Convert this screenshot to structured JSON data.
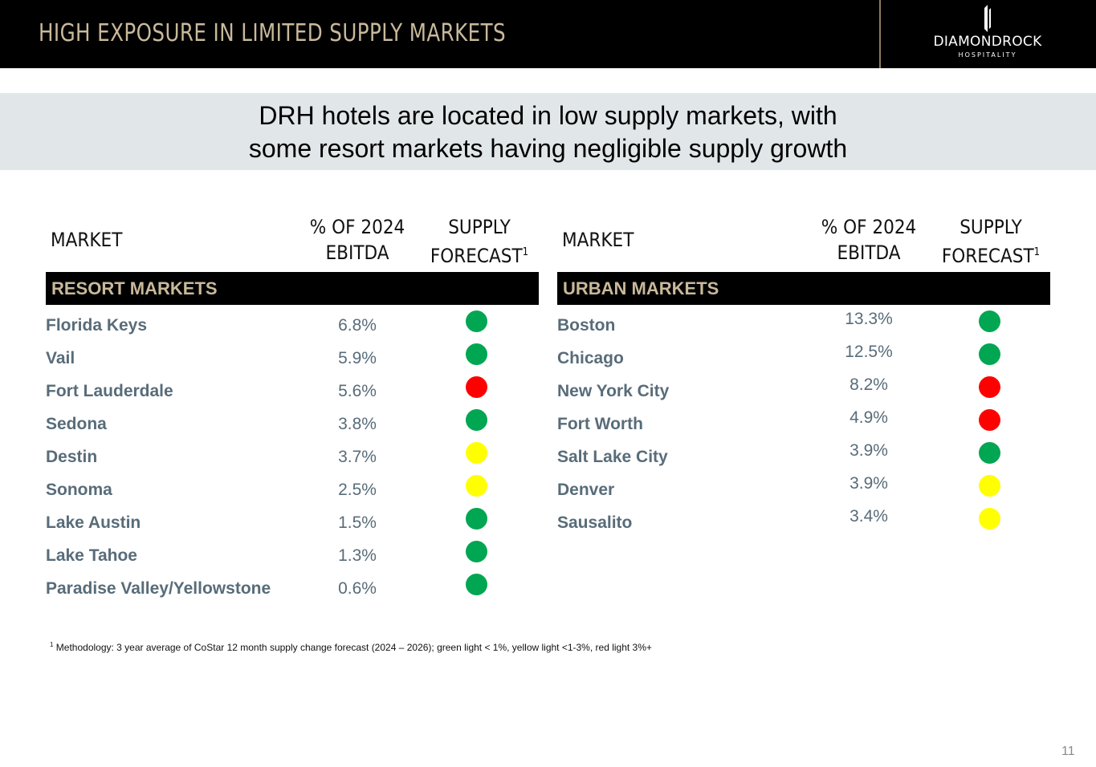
{
  "header": {
    "title": "HIGH EXPOSURE IN LIMITED SUPPLY MARKETS",
    "logo_name": "DIAMONDROCK",
    "logo_sub": "HOSPITALITY"
  },
  "banner": {
    "line1": "DRH hotels are located in low supply markets, with",
    "line2": "some resort markets having negligible supply growth"
  },
  "columns": {
    "market": "MARKET",
    "pct_line1": "% OF 2024",
    "pct_line2": "EBITDA",
    "supply_line1": "SUPPLY",
    "supply_line2": "FORECAST",
    "supply_sup": "1"
  },
  "colors": {
    "green": "#00a651",
    "yellow": "#ffff00",
    "red": "#ff0000"
  },
  "resort": {
    "title": "RESORT MARKETS",
    "rows": [
      {
        "market": "Florida Keys",
        "pct": "6.8%",
        "light": "green"
      },
      {
        "market": "Vail",
        "pct": "5.9%",
        "light": "green"
      },
      {
        "market": "Fort Lauderdale",
        "pct": "5.6%",
        "light": "red"
      },
      {
        "market": "Sedona",
        "pct": "3.8%",
        "light": "green"
      },
      {
        "market": "Destin",
        "pct": "3.7%",
        "light": "yellow"
      },
      {
        "market": "Sonoma",
        "pct": "2.5%",
        "light": "yellow"
      },
      {
        "market": "Lake Austin",
        "pct": "1.5%",
        "light": "green"
      },
      {
        "market": "Lake Tahoe",
        "pct": "1.3%",
        "light": "green"
      },
      {
        "market": "Paradise Valley/Yellowstone",
        "pct": "0.6%",
        "light": "green"
      }
    ]
  },
  "urban": {
    "title": "URBAN MARKETS",
    "rows": [
      {
        "market": "Boston",
        "pct": "13.3%",
        "light": "green"
      },
      {
        "market": "Chicago",
        "pct": "12.5%",
        "light": "green"
      },
      {
        "market": "New York City",
        "pct": "8.2%",
        "light": "red"
      },
      {
        "market": "Fort Worth",
        "pct": "4.9%",
        "light": "red"
      },
      {
        "market": "Salt Lake City",
        "pct": "3.9%",
        "light": "green"
      },
      {
        "market": "Denver",
        "pct": "3.9%",
        "light": "yellow"
      },
      {
        "market": "Sausalito",
        "pct": "3.4%",
        "light": "yellow"
      }
    ]
  },
  "footnote": {
    "sup": "1",
    "text": " Methodology: 3 year average of CoStar 12 month supply change forecast (2024 – 2026); green light < 1%, yellow light <1-3%, red light 3%+"
  },
  "page_number": "11"
}
